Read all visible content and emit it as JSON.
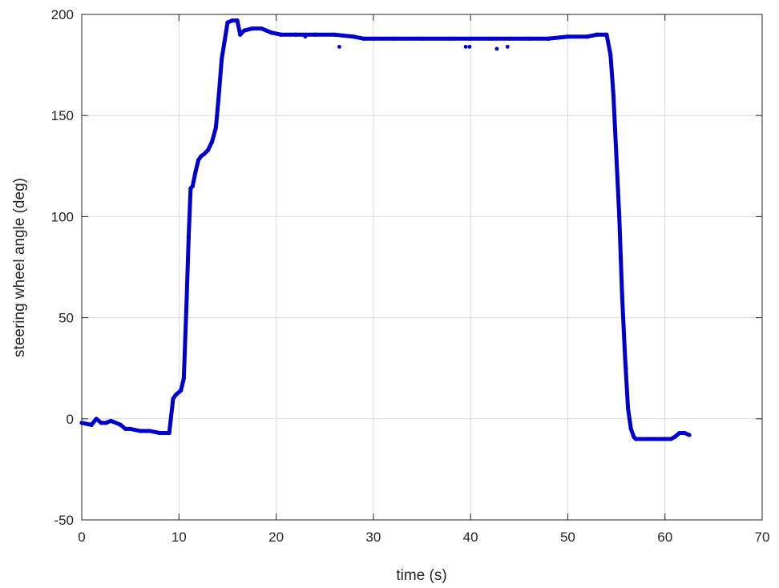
{
  "chart_data": {
    "type": "line",
    "title": "",
    "xlabel": "time (s)",
    "ylabel": "steering wheel angle (deg)",
    "xlim": [
      0,
      70
    ],
    "ylim": [
      -50,
      200
    ],
    "xticks": [
      0,
      10,
      20,
      30,
      40,
      50,
      60,
      70
    ],
    "yticks": [
      -50,
      0,
      50,
      100,
      150,
      200
    ],
    "xtick_labels": [
      "0",
      "10",
      "20",
      "30",
      "40",
      "50",
      "60",
      "70"
    ],
    "ytick_labels": [
      "-50",
      "0",
      "50",
      "100",
      "150",
      "200"
    ],
    "grid": true,
    "legend": "none",
    "series": [
      {
        "color": "#0000cc",
        "marker": "dot",
        "x": [
          0,
          1.0,
          1.5,
          2.0,
          2.5,
          3.0,
          4.0,
          4.5,
          5.0,
          6.0,
          7.0,
          8.0,
          9.0,
          9.4,
          9.7,
          10.2,
          10.5,
          10.8,
          11.0,
          11.2,
          11.4,
          11.7,
          12.0,
          12.3,
          12.6,
          13.0,
          13.4,
          13.8,
          14.1,
          14.4,
          14.7,
          15.0,
          15.5,
          16.0,
          16.3,
          16.7,
          17.5,
          18.5,
          19.5,
          20.5,
          22.0,
          24.0,
          26.0,
          28.0,
          29.0,
          30.0,
          32.0,
          35.0,
          38.0,
          40.0,
          42.0,
          44.0,
          46.0,
          48.0,
          50.0,
          52.0,
          53.0,
          54.0,
          54.4,
          54.7,
          55.0,
          55.3,
          55.6,
          55.9,
          56.2,
          56.5,
          56.8,
          57.0,
          58.0,
          59.0,
          60.0,
          60.6,
          61.0,
          61.5,
          62.0,
          62.5
        ],
        "y": [
          -2,
          -3,
          0,
          -2,
          -2,
          -1,
          -3,
          -5,
          -5,
          -6,
          -6,
          -7,
          -7,
          10,
          12,
          14,
          20,
          60,
          90,
          114,
          115,
          122,
          128,
          130,
          131,
          133,
          137,
          144,
          160,
          178,
          187,
          196,
          197,
          197,
          190,
          192,
          193,
          193,
          191,
          190,
          190,
          190,
          190,
          189,
          188,
          188,
          188,
          188,
          188,
          188,
          188,
          188,
          188,
          188,
          189,
          189,
          190,
          190,
          180,
          160,
          130,
          100,
          60,
          30,
          5,
          -5,
          -9,
          -10,
          -10,
          -10,
          -10,
          -10,
          -9,
          -7,
          -7,
          -8
        ]
      },
      {
        "color": "#0000cc",
        "marker": "dot",
        "x": [
          23.0,
          26.5,
          39.5,
          39.9,
          42.7,
          43.8,
          56.0
        ],
        "y": [
          189,
          184,
          184,
          184,
          183,
          184,
          25
        ]
      }
    ]
  }
}
